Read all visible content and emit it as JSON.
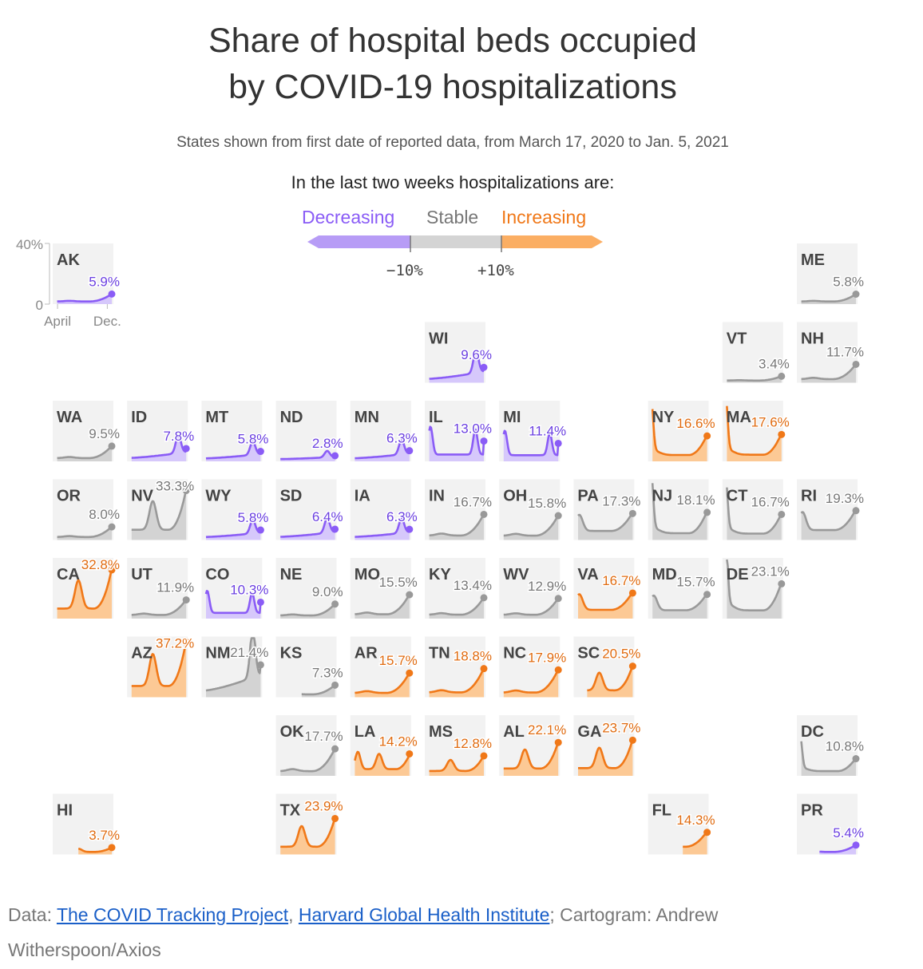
{
  "title_line1": "Share of hospital beds occupied",
  "title_line2": "by COVID-19 hospitalizations",
  "subtitle": "States shown from first date of reported data, from March 17, 2020 to Jan. 5, 2021",
  "legend": {
    "title": "In the last two weeks hospitalizations are:",
    "decreasing": "Decreasing",
    "stable": "Stable",
    "increasing": "Increasing",
    "tick_neg": "−10%",
    "tick_pos": "+10%"
  },
  "colors": {
    "decreasing": "#8a5cf6",
    "stable": "#999999",
    "increasing": "#f07818",
    "tile": "#f2f2f2"
  },
  "footer": {
    "prefix": "Data: ",
    "link1": "The COVID Tracking Project",
    "sep": ", ",
    "link2": "Harvard Global Health Institute",
    "suffix": "; Cartogram: Andrew Witherspoon/Axios"
  },
  "chart_data": {
    "type": "line",
    "title": "Share of hospital beds occupied by COVID-19 hospitalizations",
    "y_axis": {
      "min": 0,
      "max": 40,
      "unit": "%",
      "tick_labels": [
        "40%",
        "0"
      ]
    },
    "x_axis": {
      "tick_labels": [
        "April",
        "Dec."
      ]
    },
    "tiles": [
      {
        "state": "AK",
        "value": 5.9,
        "label": "5.9%",
        "trend": "decreasing",
        "shape": "rise_late",
        "row": 0,
        "col": 0,
        "start": 0.1
      },
      {
        "state": "ME",
        "value": 5.8,
        "label": "5.8%",
        "trend": "stable",
        "shape": "rise_late",
        "row": 0,
        "col": 10,
        "start": 0.1
      },
      {
        "state": "WI",
        "value": 9.6,
        "label": "9.6%",
        "trend": "decreasing",
        "shape": "peak_late",
        "row": 1,
        "col": 5,
        "start": 0.1
      },
      {
        "state": "VT",
        "value": 3.4,
        "label": "3.4%",
        "trend": "stable",
        "shape": "rise_late",
        "row": 1,
        "col": 9,
        "start": 0.1
      },
      {
        "state": "NH",
        "value": 11.7,
        "label": "11.7%",
        "trend": "stable",
        "shape": "rise_late",
        "row": 1,
        "col": 10,
        "start": 0.1
      },
      {
        "state": "WA",
        "value": 9.5,
        "label": "9.5%",
        "trend": "stable",
        "shape": "rise_late",
        "row": 2,
        "col": 0,
        "start": 0.1
      },
      {
        "state": "ID",
        "value": 7.8,
        "label": "7.8%",
        "trend": "decreasing",
        "shape": "peak_late",
        "row": 2,
        "col": 1,
        "start": 0.1
      },
      {
        "state": "MT",
        "value": 5.8,
        "label": "5.8%",
        "trend": "decreasing",
        "shape": "peak_late",
        "row": 2,
        "col": 2,
        "start": 0.1
      },
      {
        "state": "ND",
        "value": 2.8,
        "label": "2.8%",
        "trend": "decreasing",
        "shape": "peak_late",
        "row": 2,
        "col": 3,
        "start": 0.1
      },
      {
        "state": "MN",
        "value": 6.3,
        "label": "6.3%",
        "trend": "decreasing",
        "shape": "peak_late",
        "row": 2,
        "col": 4,
        "start": 0.1
      },
      {
        "state": "IL",
        "value": 13.0,
        "label": "13.0%",
        "trend": "decreasing",
        "shape": "double_peak",
        "row": 2,
        "col": 5,
        "start": 0.1
      },
      {
        "state": "MI",
        "value": 11.4,
        "label": "11.4%",
        "trend": "decreasing",
        "shape": "double_peak",
        "row": 2,
        "col": 6,
        "start": 0.1
      },
      {
        "state": "NY",
        "value": 16.6,
        "label": "16.6%",
        "trend": "increasing",
        "shape": "early_spike",
        "row": 2,
        "col": 8,
        "start": 0.1
      },
      {
        "state": "MA",
        "value": 17.6,
        "label": "17.6%",
        "trend": "increasing",
        "shape": "early_spike",
        "row": 2,
        "col": 9,
        "start": 0.1
      },
      {
        "state": "OR",
        "value": 8.0,
        "label": "8.0%",
        "trend": "stable",
        "shape": "rise_late",
        "row": 3,
        "col": 0,
        "start": 0.1
      },
      {
        "state": "NV",
        "value": 33.3,
        "label": "33.3%",
        "trend": "stable",
        "shape": "summer_peak",
        "row": 3,
        "col": 1,
        "start": 0.1
      },
      {
        "state": "WY",
        "value": 5.8,
        "label": "5.8%",
        "trend": "decreasing",
        "shape": "peak_late",
        "row": 3,
        "col": 2,
        "start": 0.1
      },
      {
        "state": "SD",
        "value": 6.4,
        "label": "6.4%",
        "trend": "decreasing",
        "shape": "peak_late",
        "row": 3,
        "col": 3,
        "start": 0.1
      },
      {
        "state": "IA",
        "value": 6.3,
        "label": "6.3%",
        "trend": "decreasing",
        "shape": "peak_late",
        "row": 3,
        "col": 4,
        "start": 0.1
      },
      {
        "state": "IN",
        "value": 16.7,
        "label": "16.7%",
        "trend": "stable",
        "shape": "rise_late",
        "row": 3,
        "col": 5,
        "start": 0.1
      },
      {
        "state": "OH",
        "value": 15.8,
        "label": "15.8%",
        "trend": "stable",
        "shape": "rise_late",
        "row": 3,
        "col": 6,
        "start": 0.1
      },
      {
        "state": "PA",
        "value": 17.3,
        "label": "17.3%",
        "trend": "stable",
        "shape": "u_shape",
        "row": 3,
        "col": 7,
        "start": 0.1
      },
      {
        "state": "NJ",
        "value": 18.1,
        "label": "18.1%",
        "trend": "stable",
        "shape": "early_spike",
        "row": 3,
        "col": 8,
        "start": 0.1
      },
      {
        "state": "CT",
        "value": 16.7,
        "label": "16.7%",
        "trend": "stable",
        "shape": "early_spike",
        "row": 3,
        "col": 9,
        "start": 0.1
      },
      {
        "state": "RI",
        "value": 19.3,
        "label": "19.3%",
        "trend": "stable",
        "shape": "u_shape",
        "row": 3,
        "col": 10,
        "start": 0.1
      },
      {
        "state": "CA",
        "value": 32.8,
        "label": "32.8%",
        "trend": "increasing",
        "shape": "summer_peak",
        "row": 4,
        "col": 0,
        "start": 0.1
      },
      {
        "state": "UT",
        "value": 11.9,
        "label": "11.9%",
        "trend": "stable",
        "shape": "rise_late",
        "row": 4,
        "col": 1,
        "start": 0.1
      },
      {
        "state": "CO",
        "value": 10.3,
        "label": "10.3%",
        "trend": "decreasing",
        "shape": "double_peak",
        "row": 4,
        "col": 2,
        "start": 0.1
      },
      {
        "state": "NE",
        "value": 9.0,
        "label": "9.0%",
        "trend": "stable",
        "shape": "rise_late",
        "row": 4,
        "col": 3,
        "start": 0.1
      },
      {
        "state": "MO",
        "value": 15.5,
        "label": "15.5%",
        "trend": "stable",
        "shape": "rise_late",
        "row": 4,
        "col": 4,
        "start": 0.1
      },
      {
        "state": "KY",
        "value": 13.4,
        "label": "13.4%",
        "trend": "stable",
        "shape": "rise_late",
        "row": 4,
        "col": 5,
        "start": 0.1
      },
      {
        "state": "WV",
        "value": 12.9,
        "label": "12.9%",
        "trend": "stable",
        "shape": "rise_late",
        "row": 4,
        "col": 6,
        "start": 0.1
      },
      {
        "state": "VA",
        "value": 16.7,
        "label": "16.7%",
        "trend": "increasing",
        "shape": "u_shape",
        "row": 4,
        "col": 7,
        "start": 0.1
      },
      {
        "state": "MD",
        "value": 15.7,
        "label": "15.7%",
        "trend": "stable",
        "shape": "u_shape",
        "row": 4,
        "col": 8,
        "start": 0.1
      },
      {
        "state": "DE",
        "value": 23.1,
        "label": "23.1%",
        "trend": "stable",
        "shape": "early_spike",
        "row": 4,
        "col": 9,
        "start": 0.1
      },
      {
        "state": "AZ",
        "value": 37.2,
        "label": "37.2%",
        "trend": "increasing",
        "shape": "summer_peak",
        "row": 5,
        "col": 1,
        "start": 0.1
      },
      {
        "state": "NM",
        "value": 21.4,
        "label": "21.4%",
        "trend": "stable",
        "shape": "peak_late",
        "row": 5,
        "col": 2,
        "start": 0.1
      },
      {
        "state": "KS",
        "value": 7.3,
        "label": "7.3%",
        "trend": "stable",
        "shape": "rise_late",
        "row": 5,
        "col": 3,
        "start": 0.45
      },
      {
        "state": "AR",
        "value": 15.7,
        "label": "15.7%",
        "trend": "increasing",
        "shape": "rise_late",
        "row": 5,
        "col": 4,
        "start": 0.1
      },
      {
        "state": "TN",
        "value": 18.8,
        "label": "18.8%",
        "trend": "increasing",
        "shape": "rise_late",
        "row": 5,
        "col": 5,
        "start": 0.1
      },
      {
        "state": "NC",
        "value": 17.9,
        "label": "17.9%",
        "trend": "increasing",
        "shape": "rise_late",
        "row": 5,
        "col": 6,
        "start": 0.1
      },
      {
        "state": "SC",
        "value": 20.5,
        "label": "20.5%",
        "trend": "increasing",
        "shape": "summer_peak",
        "row": 5,
        "col": 7,
        "start": 0.25
      },
      {
        "state": "OK",
        "value": 17.7,
        "label": "17.7%",
        "trend": "stable",
        "shape": "rise_late",
        "row": 6,
        "col": 3,
        "start": 0.1
      },
      {
        "state": "LA",
        "value": 14.2,
        "label": "14.2%",
        "trend": "increasing",
        "shape": "three_wave",
        "row": 6,
        "col": 4,
        "start": 0.1
      },
      {
        "state": "MS",
        "value": 12.8,
        "label": "12.8%",
        "trend": "increasing",
        "shape": "summer_peak",
        "row": 6,
        "col": 5,
        "start": 0.1
      },
      {
        "state": "AL",
        "value": 22.1,
        "label": "22.1%",
        "trend": "increasing",
        "shape": "summer_peak",
        "row": 6,
        "col": 6,
        "start": 0.1
      },
      {
        "state": "GA",
        "value": 23.7,
        "label": "23.7%",
        "trend": "increasing",
        "shape": "summer_peak",
        "row": 6,
        "col": 7,
        "start": 0.1
      },
      {
        "state": "DC",
        "value": 10.8,
        "label": "10.8%",
        "trend": "stable",
        "shape": "early_spike",
        "row": 6,
        "col": 10,
        "start": 0.1
      },
      {
        "state": "HI",
        "value": 3.7,
        "label": "3.7%",
        "trend": "increasing",
        "shape": "summer_peak",
        "row": 7,
        "col": 0,
        "start": 0.45
      },
      {
        "state": "TX",
        "value": 23.9,
        "label": "23.9%",
        "trend": "increasing",
        "shape": "summer_peak",
        "row": 7,
        "col": 3,
        "start": 0.1
      },
      {
        "state": "FL",
        "value": 14.3,
        "label": "14.3%",
        "trend": "increasing",
        "shape": "u_shape",
        "row": 7,
        "col": 8,
        "start": 0.6
      },
      {
        "state": "PR",
        "value": 5.4,
        "label": "5.4%",
        "trend": "decreasing",
        "shape": "rise_late",
        "row": 7,
        "col": 10,
        "start": 0.4
      }
    ]
  }
}
